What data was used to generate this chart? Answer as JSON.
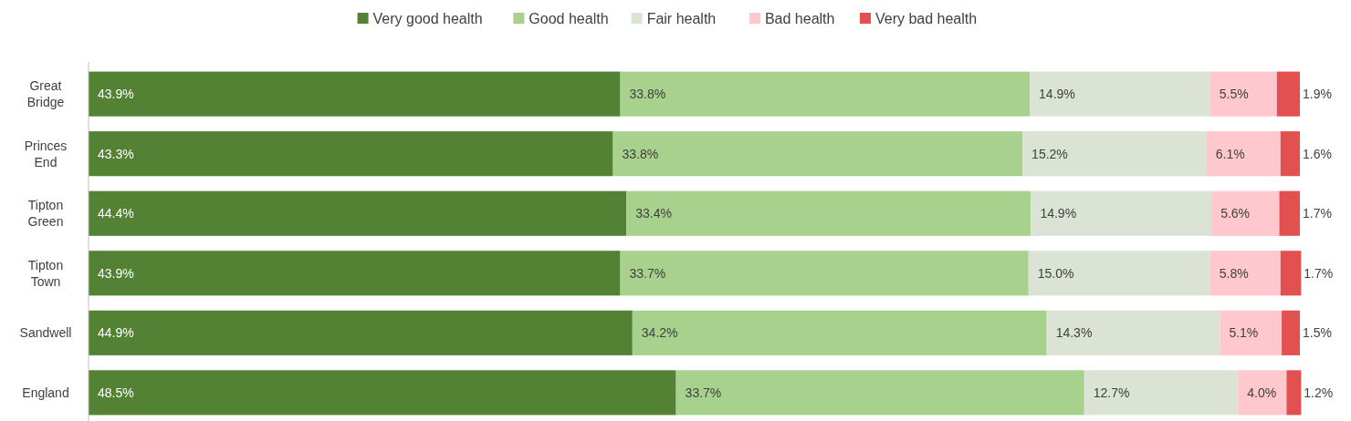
{
  "chart_data": {
    "type": "bar",
    "orientation": "horizontal",
    "stacked": true,
    "legend": "top",
    "tick_labels": "y",
    "xlim": [
      0,
      100
    ],
    "categories": [
      "Great Bridge",
      "Princes End",
      "Tipton Green",
      "Tipton Town",
      "Sandwell",
      "England"
    ],
    "series": [
      {
        "name": "Very good health",
        "color": "#548235",
        "values": [
          43.9,
          43.3,
          44.4,
          43.9,
          44.9,
          48.5
        ],
        "value_labels": [
          "43.9%",
          "43.3%",
          "44.4%",
          "43.9%",
          "44.9%",
          "48.5%"
        ]
      },
      {
        "name": "Good health",
        "color": "#a9d18e",
        "values": [
          33.8,
          33.8,
          33.4,
          33.7,
          34.2,
          33.7
        ],
        "value_labels": [
          "33.8%",
          "33.8%",
          "33.4%",
          "33.7%",
          "34.2%",
          "33.7%"
        ]
      },
      {
        "name": "Fair health",
        "color": "#dbe3d4",
        "values": [
          14.9,
          15.2,
          14.9,
          15.0,
          14.3,
          12.7
        ],
        "value_labels": [
          "14.9%",
          "15.2%",
          "14.9%",
          "15.0%",
          "14.3%",
          "12.7%"
        ]
      },
      {
        "name": "Bad health",
        "color": "#ffc7ce",
        "values": [
          5.5,
          6.1,
          5.6,
          5.8,
          5.1,
          4.0
        ],
        "value_labels": [
          "5.5%",
          "6.1%",
          "5.6%",
          "5.8%",
          "5.1%",
          "4.0%"
        ]
      },
      {
        "name": "Very bad health",
        "color": "#e35050",
        "values": [
          1.9,
          1.6,
          1.7,
          1.7,
          1.5,
          1.2
        ],
        "value_labels": [
          "1.9%",
          "1.6%",
          "1.7%",
          "1.7%",
          "1.5%",
          "1.2%"
        ]
      }
    ]
  }
}
